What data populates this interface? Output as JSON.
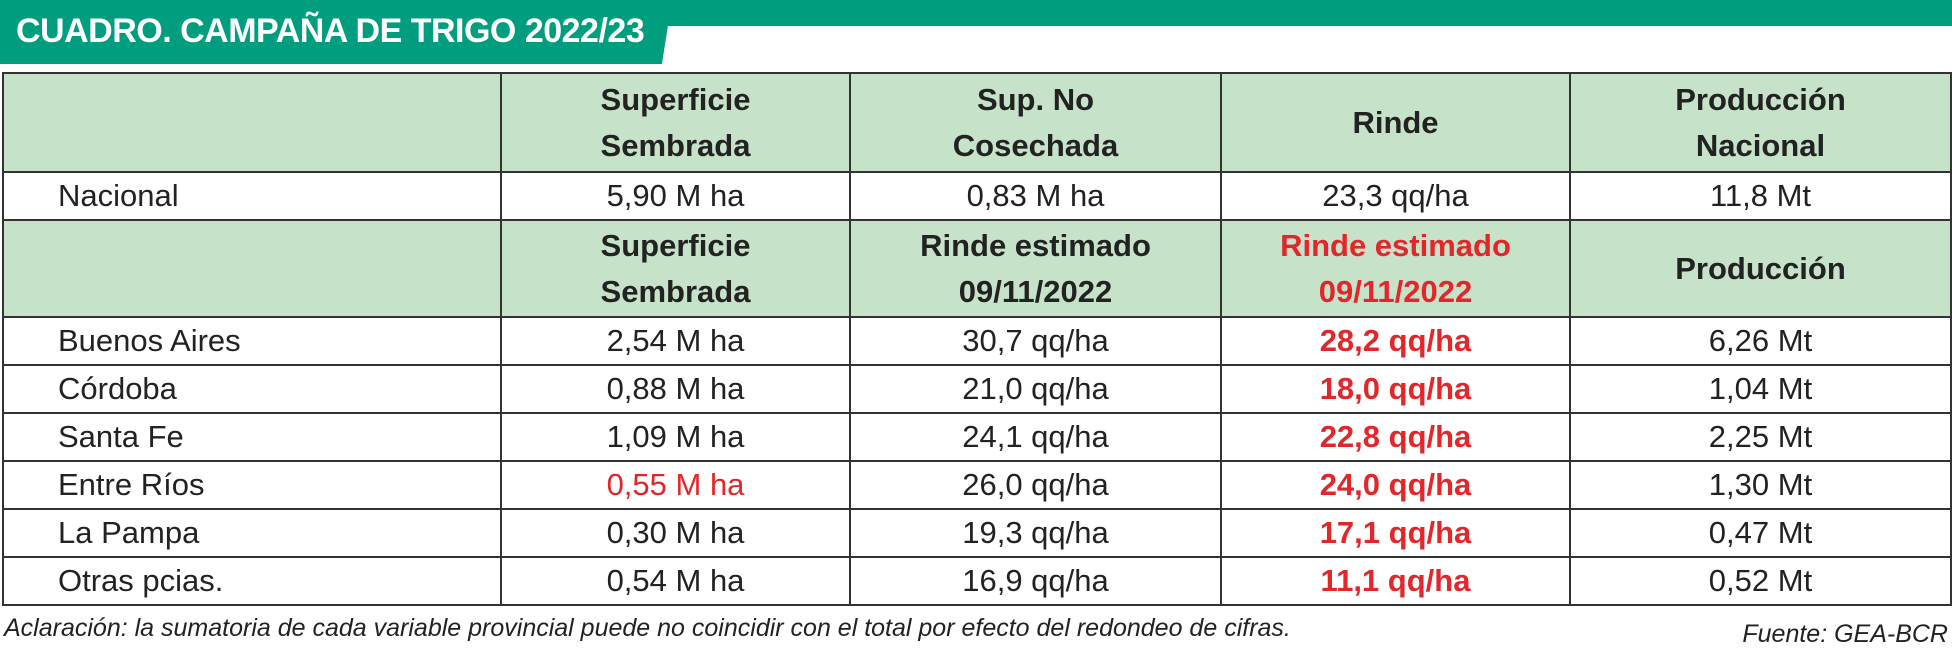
{
  "header": {
    "title": "CUADRO. CAMPAÑA DE TRIGO 2022/23"
  },
  "table": {
    "national": {
      "headers": [
        [
          "Superficie",
          "Sembrada"
        ],
        [
          "Sup. No",
          "Cosechada"
        ],
        [
          "Rinde"
        ],
        [
          "Producción",
          "Nacional"
        ]
      ],
      "rows": [
        [
          "Nacional",
          "5,90 M ha",
          "0,83 M ha",
          "23,3 qq/ha",
          "11,8 Mt"
        ]
      ]
    },
    "provincial": {
      "headers": [
        [
          "Superficie",
          "Sembrada"
        ],
        [
          "Rinde estimado",
          "09/11/2022"
        ],
        [
          "Rinde estimado",
          "09/11/2022"
        ],
        [
          "Producción"
        ]
      ],
      "rows": [
        [
          "Buenos Aires",
          "2,54 M ha",
          "30,7 qq/ha",
          "28,2 qq/ha",
          "6,26 Mt"
        ],
        [
          "Córdoba",
          "0,88 M ha",
          "21,0 qq/ha",
          "18,0 qq/ha",
          "1,04 Mt"
        ],
        [
          "Santa Fe",
          "1,09 M ha",
          "24,1 qq/ha",
          "22,8 qq/ha",
          "2,25 Mt"
        ],
        [
          "Entre Ríos",
          "0,55 M ha",
          "26,0 qq/ha",
          "24,0 qq/ha",
          "1,30 Mt"
        ],
        [
          "La Pampa",
          "0,30 M ha",
          "19,3 qq/ha",
          "17,1 qq/ha",
          "0,47 Mt"
        ],
        [
          "Otras pcias.",
          "0,54 M ha",
          "16,9 qq/ha",
          "11,1 qq/ha",
          "0,52 Mt"
        ]
      ]
    }
  },
  "footer": {
    "note": "Aclaración: la sumatoria de cada variable provincial puede no coincidir con el total por efecto del redondeo de cifras.",
    "source": "Fuente: GEA-BCR"
  }
}
